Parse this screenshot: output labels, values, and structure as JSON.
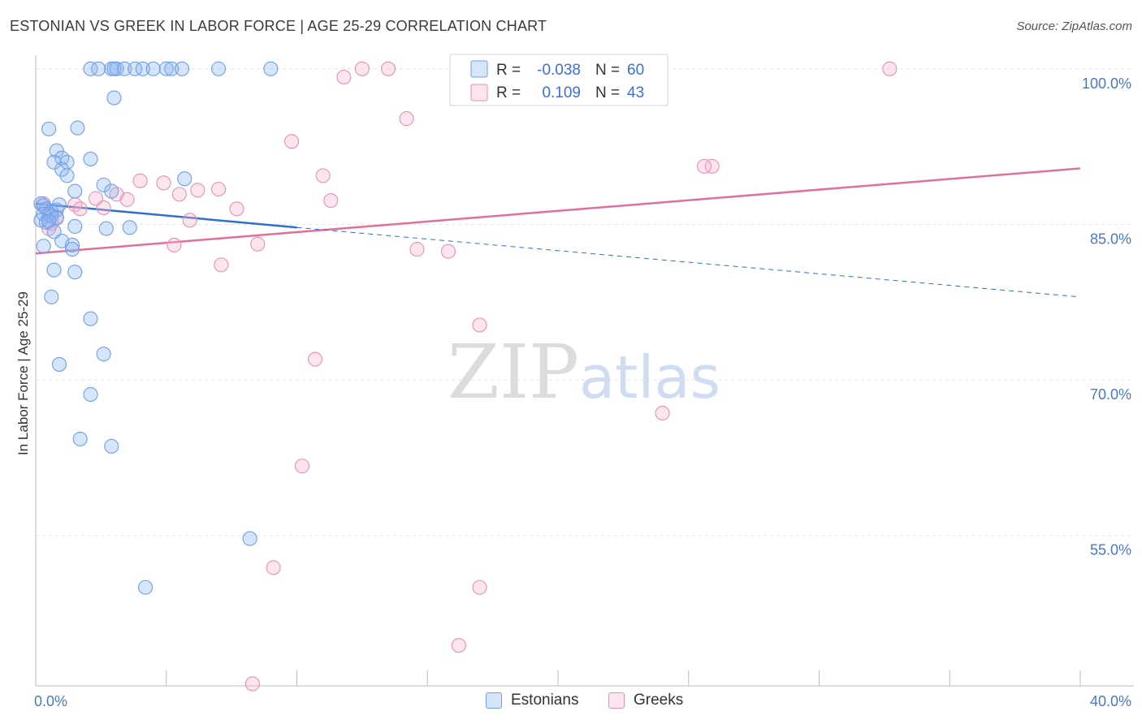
{
  "chart_data": {
    "type": "scatter",
    "title": "ESTONIAN VS GREEK IN LABOR FORCE | AGE 25-29 CORRELATION CHART",
    "source": "Source: ZipAtlas.com",
    "xlabel": "",
    "ylabel": "In Labor Force | Age 25-29",
    "xlim": [
      0,
      40
    ],
    "ylim": [
      40.5,
      101
    ],
    "x_tick_labels": [
      "0.0%",
      "40.0%"
    ],
    "y_ticks": [
      {
        "value": 100,
        "label": "100.0%"
      },
      {
        "value": 85,
        "label": "85.0%"
      },
      {
        "value": 70,
        "label": "70.0%"
      },
      {
        "value": 55,
        "label": "55.0%"
      }
    ],
    "watermark": {
      "zip": "ZIP",
      "atlas": "atlas"
    },
    "series": [
      {
        "name": "Estonians",
        "color": "#6f9fe8",
        "fill": "rgba(140,180,240,0.35)",
        "trend_color": "#2f6fd0",
        "R": "-0.038",
        "N": "60",
        "trend": {
          "x0": 0,
          "y0": 87.0,
          "x1": 10.0,
          "y1": 84.7,
          "x_dash_end": 40,
          "y_dash_end": 78.0
        },
        "points": [
          [
            2.1,
            100
          ],
          [
            2.4,
            100
          ],
          [
            2.9,
            100
          ],
          [
            3.1,
            100
          ],
          [
            3.0,
            100
          ],
          [
            3.4,
            100
          ],
          [
            3.8,
            100
          ],
          [
            4.1,
            100
          ],
          [
            4.5,
            100
          ],
          [
            5.0,
            100
          ],
          [
            5.2,
            100
          ],
          [
            5.6,
            100
          ],
          [
            7.0,
            100
          ],
          [
            9.0,
            100
          ],
          [
            3.0,
            97.2
          ],
          [
            0.5,
            94.2
          ],
          [
            1.6,
            94.3
          ],
          [
            0.8,
            92.1
          ],
          [
            1.0,
            91.4
          ],
          [
            0.7,
            91.0
          ],
          [
            1.2,
            91.0
          ],
          [
            2.1,
            91.3
          ],
          [
            1.0,
            90.3
          ],
          [
            1.2,
            89.7
          ],
          [
            5.7,
            89.4
          ],
          [
            2.6,
            88.8
          ],
          [
            1.5,
            88.2
          ],
          [
            2.9,
            88.2
          ],
          [
            0.2,
            87.0
          ],
          [
            0.3,
            86.8
          ],
          [
            0.4,
            86.5
          ],
          [
            0.6,
            86.2
          ],
          [
            0.5,
            86.0
          ],
          [
            0.8,
            86.4
          ],
          [
            0.9,
            86.9
          ],
          [
            0.3,
            86.0
          ],
          [
            0.6,
            85.8
          ],
          [
            0.8,
            85.6
          ],
          [
            0.2,
            85.4
          ],
          [
            0.4,
            85.2
          ],
          [
            0.5,
            85.3
          ],
          [
            1.5,
            84.8
          ],
          [
            2.7,
            84.6
          ],
          [
            3.6,
            84.7
          ],
          [
            0.7,
            84.3
          ],
          [
            1.0,
            83.4
          ],
          [
            1.4,
            83.0
          ],
          [
            0.3,
            82.9
          ],
          [
            1.4,
            82.6
          ],
          [
            0.7,
            80.6
          ],
          [
            1.5,
            80.4
          ],
          [
            0.6,
            78.0
          ],
          [
            2.1,
            75.9
          ],
          [
            2.6,
            72.5
          ],
          [
            0.9,
            71.5
          ],
          [
            2.1,
            68.6
          ],
          [
            1.7,
            64.3
          ],
          [
            2.9,
            63.6
          ],
          [
            8.2,
            54.7
          ],
          [
            4.2,
            50.0
          ]
        ]
      },
      {
        "name": "Greeks",
        "color": "#e890b0",
        "fill": "rgba(245,180,205,0.35)",
        "trend_color": "#e0709a",
        "R": "0.109",
        "N": "43",
        "trend": {
          "x0": 0,
          "y0": 82.2,
          "x1": 40,
          "y1": 90.4
        },
        "points": [
          [
            12.5,
            100
          ],
          [
            13.5,
            100
          ],
          [
            17.8,
            100
          ],
          [
            18.9,
            100
          ],
          [
            22.3,
            100
          ],
          [
            32.7,
            100
          ],
          [
            11.8,
            99.2
          ],
          [
            14.2,
            95.2
          ],
          [
            9.8,
            93.0
          ],
          [
            25.9,
            90.6
          ],
          [
            25.6,
            90.6
          ],
          [
            11.0,
            89.7
          ],
          [
            4.0,
            89.2
          ],
          [
            4.9,
            89.0
          ],
          [
            6.2,
            88.3
          ],
          [
            5.5,
            87.9
          ],
          [
            7.0,
            88.4
          ],
          [
            2.3,
            87.5
          ],
          [
            3.1,
            87.9
          ],
          [
            3.5,
            87.4
          ],
          [
            11.3,
            87.3
          ],
          [
            0.3,
            87.0
          ],
          [
            1.5,
            86.9
          ],
          [
            2.6,
            86.6
          ],
          [
            1.7,
            86.5
          ],
          [
            7.7,
            86.5
          ],
          [
            0.8,
            85.7
          ],
          [
            5.9,
            85.4
          ],
          [
            0.6,
            85.1
          ],
          [
            0.5,
            84.6
          ],
          [
            5.3,
            83.0
          ],
          [
            8.5,
            83.1
          ],
          [
            14.6,
            82.6
          ],
          [
            15.8,
            82.4
          ],
          [
            7.1,
            81.1
          ],
          [
            17.0,
            75.3
          ],
          [
            10.7,
            72.0
          ],
          [
            24.0,
            66.8
          ],
          [
            10.2,
            61.7
          ],
          [
            9.1,
            51.9
          ],
          [
            17.0,
            50.0
          ],
          [
            16.2,
            44.4
          ],
          [
            8.3,
            40.7
          ]
        ]
      }
    ]
  },
  "legend": {
    "r_label": "R =",
    "n_label": "N ="
  }
}
